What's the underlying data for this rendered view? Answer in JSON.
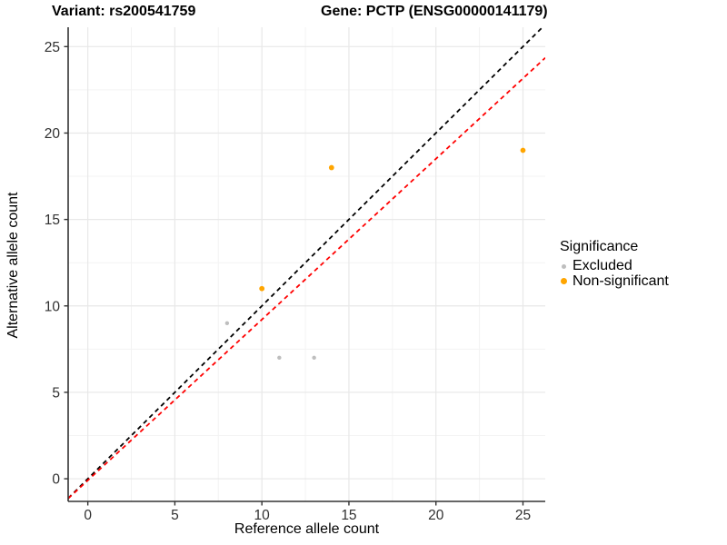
{
  "chart_data": {
    "type": "scatter",
    "title_variant": "Variant: rs200541759",
    "title_gene": "Gene: PCTP (ENSG00000141179)",
    "xlabel": "Reference allele count",
    "ylabel": "Alternative allele count",
    "xlim": [
      -1.13,
      26.28
    ],
    "ylim": [
      -1.31,
      26.12
    ],
    "xticks": [
      0,
      5,
      10,
      15,
      20,
      25
    ],
    "yticks": [
      0,
      5,
      10,
      15,
      20,
      25
    ],
    "minor_step": 2.5,
    "grid": true,
    "legend_position": "right",
    "series": [
      {
        "name": "Excluded",
        "color": "#BEBEBE",
        "point_radius": 2.2,
        "points": [
          [
            8,
            9
          ],
          [
            11,
            7
          ],
          [
            13,
            7
          ]
        ]
      },
      {
        "name": "Non-significant",
        "color": "#FFA500",
        "point_radius": 2.9,
        "points": [
          [
            10,
            11
          ],
          [
            14,
            18
          ],
          [
            25,
            19
          ]
        ]
      }
    ],
    "lines": [
      {
        "name": "identity-line",
        "color": "#000000",
        "style": "dashed",
        "slope": 1.0,
        "intercept": 0.0
      },
      {
        "name": "fit-line",
        "color": "#FF0000",
        "style": "dashed",
        "slope": 0.93,
        "intercept": -0.09
      }
    ],
    "legend": {
      "title": "Significance",
      "entries": [
        {
          "label": "Excluded",
          "color": "#BEBEBE",
          "radius": 2.5
        },
        {
          "label": "Non-significant",
          "color": "#FFA500",
          "radius": 3.5
        }
      ]
    },
    "colors": {
      "grid_major": "#E8E8E8",
      "grid_minor": "#F3F3F3",
      "axis_line": "#333333",
      "tick_label": "#303030"
    }
  }
}
